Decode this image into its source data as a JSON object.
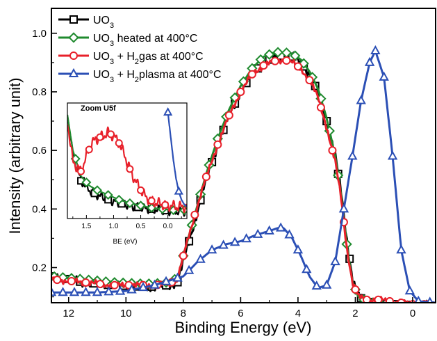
{
  "chart_data": [
    {
      "type": "line",
      "xlabel": "Binding Energy (eV)",
      "ylabel": "Intensity (arbitrary unit)",
      "xlim": [
        12.6,
        -0.8
      ],
      "ylim": [
        0.08,
        1.085
      ],
      "x_reversed": true,
      "xticks": [
        12,
        10,
        8,
        6,
        4,
        2,
        0
      ],
      "yticks": [
        0.2,
        0.4,
        0.6,
        0.8,
        1.0
      ],
      "ytick_labels": [
        "0.2",
        "0.4",
        "0.6",
        "0.8",
        "1.0"
      ],
      "legend_position": "top-left",
      "series": [
        {
          "name": "UO3 ",
          "legend": {
            "base": "UO",
            "sub": "3",
            "tail": ""
          },
          "color": "#000000",
          "marker": "square",
          "noise": 0.018,
          "x": [
            12.6,
            11.5,
            10.5,
            9.5,
            9.0,
            8.5,
            8.2,
            8.0,
            7.6,
            7.2,
            6.8,
            6.4,
            6.0,
            5.6,
            5.2,
            4.8,
            4.5,
            4.2,
            3.9,
            3.6,
            3.3,
            3.0,
            2.7,
            2.5,
            2.3,
            2.1,
            1.9,
            1.6,
            1.2,
            0.8,
            0.4,
            0.0,
            -0.8
          ],
          "y": [
            0.17,
            0.15,
            0.14,
            0.135,
            0.135,
            0.14,
            0.15,
            0.22,
            0.36,
            0.5,
            0.62,
            0.72,
            0.8,
            0.86,
            0.9,
            0.92,
            0.925,
            0.92,
            0.9,
            0.86,
            0.8,
            0.7,
            0.58,
            0.46,
            0.3,
            0.16,
            0.1,
            0.085,
            0.08,
            0.075,
            0.075,
            0.07,
            0.07
          ],
          "marker_x": [
            12.6,
            12.1,
            11.6,
            11.1,
            10.6,
            10.1,
            9.6,
            9.1,
            8.6,
            8.2,
            7.8,
            7.4,
            7.0,
            6.6,
            6.2,
            5.8,
            5.4,
            5.0,
            4.6,
            4.2,
            3.8,
            3.4,
            3.0,
            2.6,
            2.2,
            1.8,
            1.4,
            1.0,
            0.6,
            0.2,
            -0.2,
            -0.6
          ]
        },
        {
          "name": "UO3 heated at 400°C",
          "legend": {
            "base": "UO",
            "sub": "3",
            "tail": " heated at 400°C"
          },
          "color": "#1f8a2e",
          "marker": "diamond",
          "noise": 0.0,
          "x": [
            12.6,
            11.5,
            10.5,
            9.5,
            9.0,
            8.5,
            8.2,
            8.0,
            7.6,
            7.2,
            6.8,
            6.4,
            6.0,
            5.6,
            5.2,
            4.8,
            4.5,
            4.2,
            3.9,
            3.6,
            3.3,
            3.0,
            2.7,
            2.5,
            2.3,
            2.1,
            1.9,
            1.6,
            1.2,
            0.8,
            0.4,
            0.0,
            -0.8
          ],
          "y": [
            0.17,
            0.16,
            0.15,
            0.145,
            0.145,
            0.15,
            0.165,
            0.24,
            0.38,
            0.52,
            0.64,
            0.74,
            0.82,
            0.88,
            0.92,
            0.935,
            0.935,
            0.93,
            0.91,
            0.87,
            0.81,
            0.71,
            0.58,
            0.45,
            0.28,
            0.15,
            0.1,
            0.085,
            0.075,
            0.07,
            0.065,
            0.06,
            0.06
          ],
          "marker_x": [
            12.5,
            12.2,
            11.9,
            11.6,
            11.3,
            11.0,
            10.7,
            10.4,
            10.1,
            9.8,
            9.5,
            9.2,
            8.9,
            8.6,
            8.3,
            8.0,
            7.7,
            7.4,
            7.1,
            6.8,
            6.5,
            6.2,
            5.9,
            5.6,
            5.3,
            5.0,
            4.7,
            4.4,
            4.1,
            3.8,
            3.5,
            3.2,
            2.9,
            2.6,
            2.3,
            2.0,
            1.7,
            1.4,
            1.1,
            0.8,
            0.5,
            0.2,
            -0.1,
            -0.4,
            -0.7
          ]
        },
        {
          "name": "UO3 + H2gas at 400°C",
          "legend": {
            "base": "UO",
            "sub": "3",
            "mid": " + H",
            "sub2": "2",
            "tail": "gas at 400°C"
          },
          "color": "#e8202a",
          "marker": "circle",
          "noise": 0.012,
          "x": [
            12.6,
            11.5,
            10.5,
            9.5,
            9.0,
            8.5,
            8.2,
            8.0,
            7.6,
            7.2,
            6.8,
            6.4,
            6.0,
            5.6,
            5.2,
            4.8,
            4.5,
            4.2,
            3.9,
            3.6,
            3.3,
            3.0,
            2.7,
            2.5,
            2.3,
            2.1,
            1.9,
            1.6,
            1.2,
            0.8,
            0.4,
            0.0,
            -0.8
          ],
          "y": [
            0.16,
            0.15,
            0.14,
            0.14,
            0.14,
            0.145,
            0.16,
            0.24,
            0.38,
            0.51,
            0.62,
            0.72,
            0.8,
            0.86,
            0.89,
            0.905,
            0.91,
            0.9,
            0.88,
            0.84,
            0.78,
            0.68,
            0.56,
            0.44,
            0.27,
            0.15,
            0.1,
            0.09,
            0.09,
            0.085,
            0.08,
            0.075,
            0.075
          ],
          "marker_x": [
            12.4,
            11.9,
            11.4,
            10.9,
            10.4,
            9.9,
            9.4,
            8.9,
            8.4,
            8.0,
            7.6,
            7.2,
            6.8,
            6.4,
            6.0,
            5.6,
            5.2,
            4.8,
            4.4,
            4.0,
            3.6,
            3.2,
            2.8,
            2.4,
            2.0,
            1.6,
            1.2,
            0.8,
            0.4,
            0.0,
            -0.4
          ]
        },
        {
          "name": "UO3 + H2plasma at 400°C",
          "legend": {
            "base": "UO",
            "sub": "3",
            "mid": " + H",
            "sub2": "2",
            "tail": "plasma at 400°C"
          },
          "color": "#2b4fb5",
          "marker": "triangle",
          "noise": 0.0,
          "x": [
            12.6,
            12.0,
            11.0,
            10.0,
            9.0,
            8.0,
            7.5,
            7.0,
            6.5,
            6.0,
            5.5,
            5.0,
            4.7,
            4.5,
            4.2,
            3.9,
            3.6,
            3.3,
            3.0,
            2.7,
            2.4,
            2.1,
            1.8,
            1.5,
            1.3,
            1.0,
            0.7,
            0.4,
            0.1,
            -0.2,
            -0.8
          ],
          "y": [
            0.115,
            0.115,
            0.115,
            0.12,
            0.14,
            0.17,
            0.22,
            0.26,
            0.28,
            0.29,
            0.31,
            0.325,
            0.335,
            0.335,
            0.3,
            0.24,
            0.17,
            0.13,
            0.14,
            0.22,
            0.4,
            0.58,
            0.77,
            0.9,
            0.94,
            0.85,
            0.58,
            0.26,
            0.12,
            0.085,
            0.08
          ],
          "marker_x": [
            12.6,
            12.2,
            11.8,
            11.4,
            11.0,
            10.6,
            10.2,
            9.8,
            9.4,
            9.0,
            8.6,
            8.2,
            7.8,
            7.4,
            7.0,
            6.6,
            6.2,
            5.8,
            5.4,
            5.0,
            4.6,
            4.3,
            4.0,
            3.7,
            3.35,
            3.0,
            2.7,
            2.4,
            2.1,
            1.8,
            1.5,
            1.3,
            1.0,
            0.7,
            0.4,
            0.1,
            -0.2,
            -0.6
          ]
        }
      ]
    },
    {
      "type": "line",
      "title": "Zoom U5f",
      "xlabel": "BE (eV)",
      "xlim": [
        1.85,
        -0.35
      ],
      "ylim": [
        0.02,
        1.0
      ],
      "x_reversed": true,
      "xticks": [
        1.5,
        1.0,
        0.5,
        0.0
      ],
      "xtick_labels": [
        "1.5",
        "1.0",
        "0.5",
        "0.0"
      ],
      "series": [
        {
          "name": "UO3",
          "color": "#000000",
          "marker": "square",
          "noise": 0.04,
          "x": [
            1.85,
            1.75,
            1.6,
            1.45,
            1.3,
            1.1,
            0.9,
            0.7,
            0.5,
            0.3,
            0.1,
            -0.1,
            -0.35
          ],
          "y": [
            0.92,
            0.55,
            0.34,
            0.26,
            0.22,
            0.18,
            0.15,
            0.13,
            0.11,
            0.1,
            0.09,
            0.08,
            0.08
          ],
          "marker_x": [
            1.6,
            1.35,
            1.1,
            0.85,
            0.55,
            0.3,
            0.05
          ]
        },
        {
          "name": "UO3 heated at 400°C",
          "color": "#1f8a2e",
          "marker": "diamond",
          "noise": 0.0,
          "x": [
            1.85,
            1.75,
            1.6,
            1.45,
            1.3,
            1.1,
            0.9,
            0.7,
            0.5,
            0.3,
            0.1,
            -0.1,
            -0.35
          ],
          "y": [
            0.9,
            0.6,
            0.38,
            0.3,
            0.26,
            0.22,
            0.18,
            0.15,
            0.13,
            0.11,
            0.1,
            0.09,
            0.09
          ],
          "marker_x": [
            1.7,
            1.5,
            1.3,
            1.1,
            0.9,
            0.7,
            0.5,
            0.3,
            0.1,
            -0.1,
            -0.3
          ]
        },
        {
          "name": "UO3 + H2gas at 400°C",
          "color": "#e8202a",
          "marker": "circle",
          "noise": 0.05,
          "x": [
            1.85,
            1.75,
            1.6,
            1.5,
            1.4,
            1.3,
            1.2,
            1.1,
            1.0,
            0.9,
            0.8,
            0.7,
            0.6,
            0.5,
            0.4,
            0.3,
            0.2,
            0.0,
            -0.2,
            -0.35
          ],
          "y": [
            0.85,
            0.5,
            0.42,
            0.55,
            0.66,
            0.7,
            0.72,
            0.75,
            0.72,
            0.66,
            0.56,
            0.44,
            0.34,
            0.26,
            0.2,
            0.17,
            0.15,
            0.13,
            0.12,
            0.12
          ],
          "marker_x": [
            1.6,
            1.45,
            1.25,
            1.05,
            0.9,
            0.7,
            0.5,
            0.3,
            0.05
          ]
        },
        {
          "name": "UO3 + H2plasma at 400°C",
          "color": "#2b4fb5",
          "marker": "triangle",
          "noise": 0.0,
          "x": [
            0.0,
            -0.05,
            -0.1,
            -0.15,
            -0.2,
            -0.25,
            -0.3,
            -0.35
          ],
          "y": [
            0.92,
            0.72,
            0.52,
            0.36,
            0.25,
            0.18,
            0.14,
            0.12
          ],
          "marker_x": [
            0.0,
            -0.2
          ]
        }
      ]
    }
  ]
}
